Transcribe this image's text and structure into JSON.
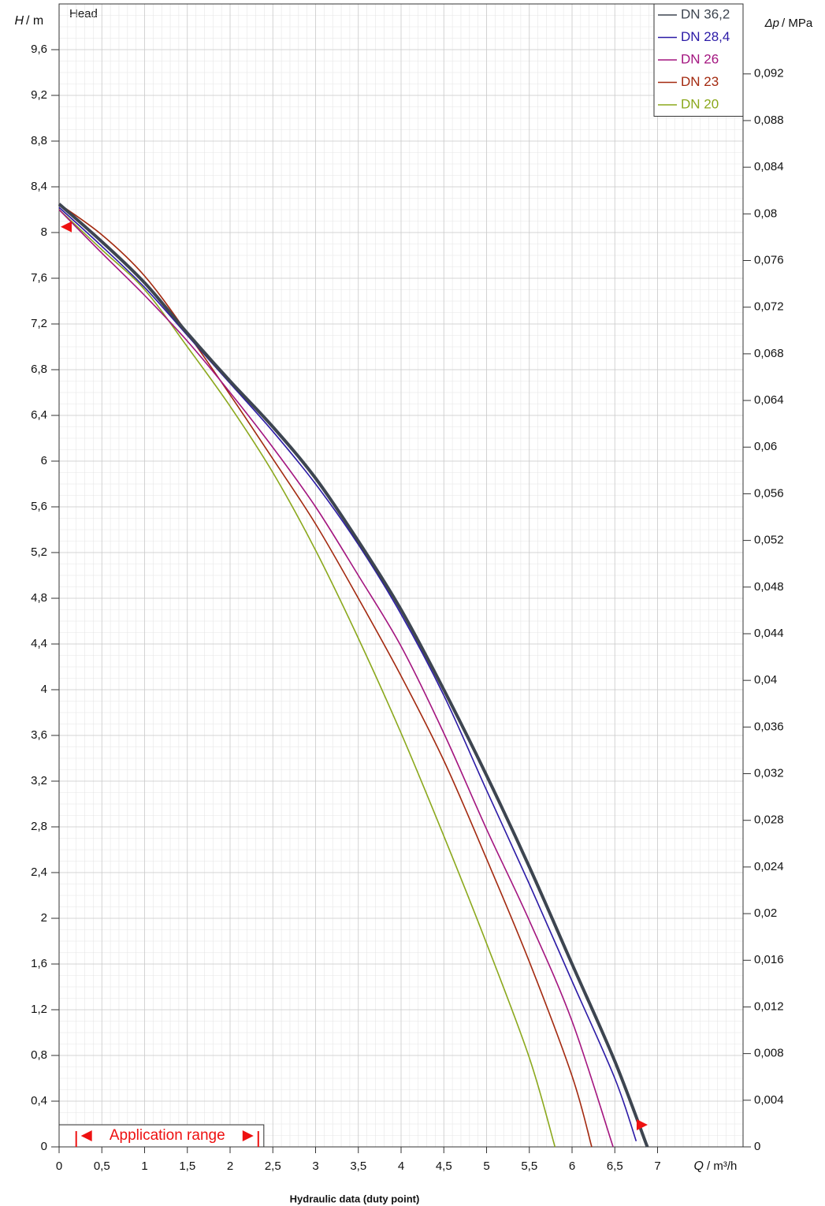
{
  "chart_data": {
    "type": "line",
    "head_label": "Head",
    "x_label_symbol": "Q",
    "x_label_unit": "/ m³/h",
    "y_label_symbol": "H",
    "y_label_unit": "/ m",
    "y2_label_symbol": "Δp",
    "y2_label_unit": "/ MPa",
    "x_title": "Hydraulic data (duty point)",
    "xlim": [
      0,
      8
    ],
    "ylim": [
      0,
      10
    ],
    "y2lim": [
      0,
      0.098
    ],
    "xticks": [
      0,
      {
        "value": 0.5,
        "label": "0,5"
      },
      1,
      {
        "value": 1.5,
        "label": "1,5"
      },
      2,
      {
        "value": 2.5,
        "label": "2,5"
      },
      3,
      {
        "value": 3.5,
        "label": "3,5"
      },
      4,
      {
        "value": 4.5,
        "label": "4,5"
      },
      5,
      {
        "value": 5.5,
        "label": "5,5"
      },
      6,
      {
        "value": 6.5,
        "label": "6,5"
      },
      7
    ],
    "yticks": [
      0,
      {
        "value": 0.4,
        "label": "0,4"
      },
      {
        "value": 0.8,
        "label": "0,8"
      },
      {
        "value": 1.2,
        "label": "1,2"
      },
      {
        "value": 1.6,
        "label": "1,6"
      },
      2,
      {
        "value": 2.4,
        "label": "2,4"
      },
      {
        "value": 2.8,
        "label": "2,8"
      },
      {
        "value": 3.2,
        "label": "3,2"
      },
      {
        "value": 3.6,
        "label": "3,6"
      },
      4,
      {
        "value": 4.4,
        "label": "4,4"
      },
      {
        "value": 4.8,
        "label": "4,8"
      },
      {
        "value": 5.2,
        "label": "5,2"
      },
      {
        "value": 5.6,
        "label": "5,6"
      },
      6,
      {
        "value": 6.4,
        "label": "6,4"
      },
      {
        "value": 6.8,
        "label": "6,8"
      },
      {
        "value": 7.2,
        "label": "7,2"
      },
      {
        "value": 7.6,
        "label": "7,6"
      },
      8,
      {
        "value": 8.4,
        "label": "8,4"
      },
      {
        "value": 8.8,
        "label": "8,8"
      },
      {
        "value": 9.2,
        "label": "9,2"
      },
      {
        "value": 9.6,
        "label": "9,6"
      }
    ],
    "y2ticks": [
      0,
      {
        "value": 0.004,
        "label": "0,004"
      },
      {
        "value": 0.008,
        "label": "0,008"
      },
      {
        "value": 0.012,
        "label": "0,012"
      },
      {
        "value": 0.016,
        "label": "0,016"
      },
      {
        "value": 0.02,
        "label": "0,02"
      },
      {
        "value": 0.024,
        "label": "0,024"
      },
      {
        "value": 0.028,
        "label": "0,028"
      },
      {
        "value": 0.032,
        "label": "0,032"
      },
      {
        "value": 0.036,
        "label": "0,036"
      },
      {
        "value": 0.04,
        "label": "0,04"
      },
      {
        "value": 0.044,
        "label": "0,044"
      },
      {
        "value": 0.048,
        "label": "0,048"
      },
      {
        "value": 0.052,
        "label": "0,052"
      },
      {
        "value": 0.056,
        "label": "0,056"
      },
      {
        "value": 0.06,
        "label": "0,06"
      },
      {
        "value": 0.064,
        "label": "0,064"
      },
      {
        "value": 0.068,
        "label": "0,068"
      },
      {
        "value": 0.072,
        "label": "0,072"
      },
      {
        "value": 0.076,
        "label": "0,076"
      },
      {
        "value": 0.08,
        "label": "0,08"
      },
      {
        "value": 0.084,
        "label": "0,084"
      },
      {
        "value": 0.088,
        "label": "0,088"
      },
      {
        "value": 0.092,
        "label": "0,092"
      }
    ],
    "grid": true,
    "legend": "top-right",
    "series": [
      {
        "name": "DN 36,2",
        "color": "#3d4550",
        "width": 4,
        "x": [
          0,
          0.5,
          1,
          1.5,
          2,
          2.5,
          3,
          3.5,
          4,
          4.5,
          5,
          5.5,
          6,
          6.5,
          6.88
        ],
        "values": [
          8.25,
          7.92,
          7.56,
          7.12,
          6.7,
          6.3,
          5.85,
          5.3,
          4.7,
          4.0,
          3.25,
          2.45,
          1.6,
          0.75,
          0
        ]
      },
      {
        "name": "DN 28,4",
        "color": "#2b1aa6",
        "width": 1.6,
        "x": [
          0,
          0.5,
          1,
          1.5,
          2,
          2.5,
          3,
          3.5,
          4,
          4.5,
          5,
          5.5,
          6,
          6.5,
          6.75
        ],
        "values": [
          8.22,
          7.88,
          7.52,
          7.1,
          6.68,
          6.26,
          5.8,
          5.27,
          4.66,
          3.95,
          3.12,
          2.3,
          1.45,
          0.6,
          0.05
        ]
      },
      {
        "name": "DN 26",
        "color": "#a3147f",
        "width": 1.6,
        "x": [
          0,
          0.5,
          1,
          1.5,
          2,
          2.5,
          3,
          3.5,
          4,
          4.5,
          5,
          5.5,
          6,
          6.48
        ],
        "values": [
          8.2,
          7.82,
          7.45,
          7.05,
          6.6,
          6.12,
          5.6,
          5.0,
          4.38,
          3.62,
          2.78,
          1.98,
          1.1,
          0
        ]
      },
      {
        "name": "DN 23",
        "color": "#a3290f",
        "width": 1.6,
        "x": [
          0,
          0.5,
          1,
          1.5,
          2,
          2.5,
          3,
          3.5,
          4,
          4.5,
          5,
          5.5,
          6,
          6.23
        ],
        "values": [
          8.25,
          7.98,
          7.62,
          7.12,
          6.58,
          6.02,
          5.45,
          4.8,
          4.12,
          3.38,
          2.52,
          1.62,
          0.62,
          0
        ]
      },
      {
        "name": "DN 20",
        "color": "#8ba81c",
        "width": 1.6,
        "x": [
          0,
          0.5,
          1,
          1.5,
          2,
          2.5,
          3,
          3.5,
          4,
          4.5,
          5,
          5.5,
          5.8
        ],
        "values": [
          8.2,
          7.85,
          7.5,
          7.0,
          6.48,
          5.9,
          5.22,
          4.45,
          3.62,
          2.72,
          1.78,
          0.78,
          0
        ]
      }
    ],
    "application_range_label": "Application range",
    "application_range": [
      0.2,
      2.33
    ],
    "head_marker": 8.05,
    "flow_marker": 6.82,
    "marker_color": "#ee1111"
  }
}
